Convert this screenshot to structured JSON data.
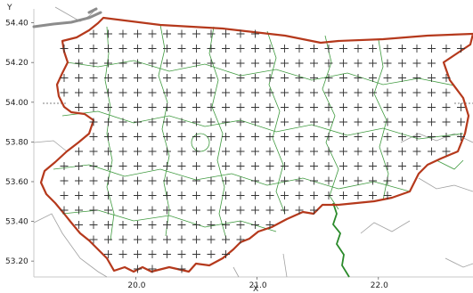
{
  "map": {
    "axis_x_label": "X",
    "axis_y_label": "Y",
    "x_ticks": [
      {
        "value": 20.0,
        "label": "20.0"
      },
      {
        "value": 21.0,
        "label": "21.0"
      },
      {
        "value": 22.0,
        "label": "22.0"
      }
    ],
    "y_ticks": [
      {
        "value": 54.4,
        "label": "54.40"
      },
      {
        "value": 54.2,
        "label": "54.20"
      },
      {
        "value": 54.0,
        "label": "54.00"
      },
      {
        "value": 53.8,
        "label": "53.80"
      },
      {
        "value": 53.6,
        "label": "53.60"
      },
      {
        "value": 53.4,
        "label": "53.40"
      },
      {
        "value": 53.2,
        "label": "53.20"
      }
    ],
    "x_range": [
      19.16,
      22.78
    ],
    "y_range": [
      53.12,
      54.47
    ],
    "grid_marker": "+",
    "colors": {
      "region_outline": "#b5391c",
      "district_lines": "#3f9a3f",
      "grid_marks": "#333333",
      "outside_borders": "#9a9a9a",
      "river": "#2a8a2a",
      "coast_gray": "#8c8c8c",
      "background": "#ffffff"
    }
  }
}
